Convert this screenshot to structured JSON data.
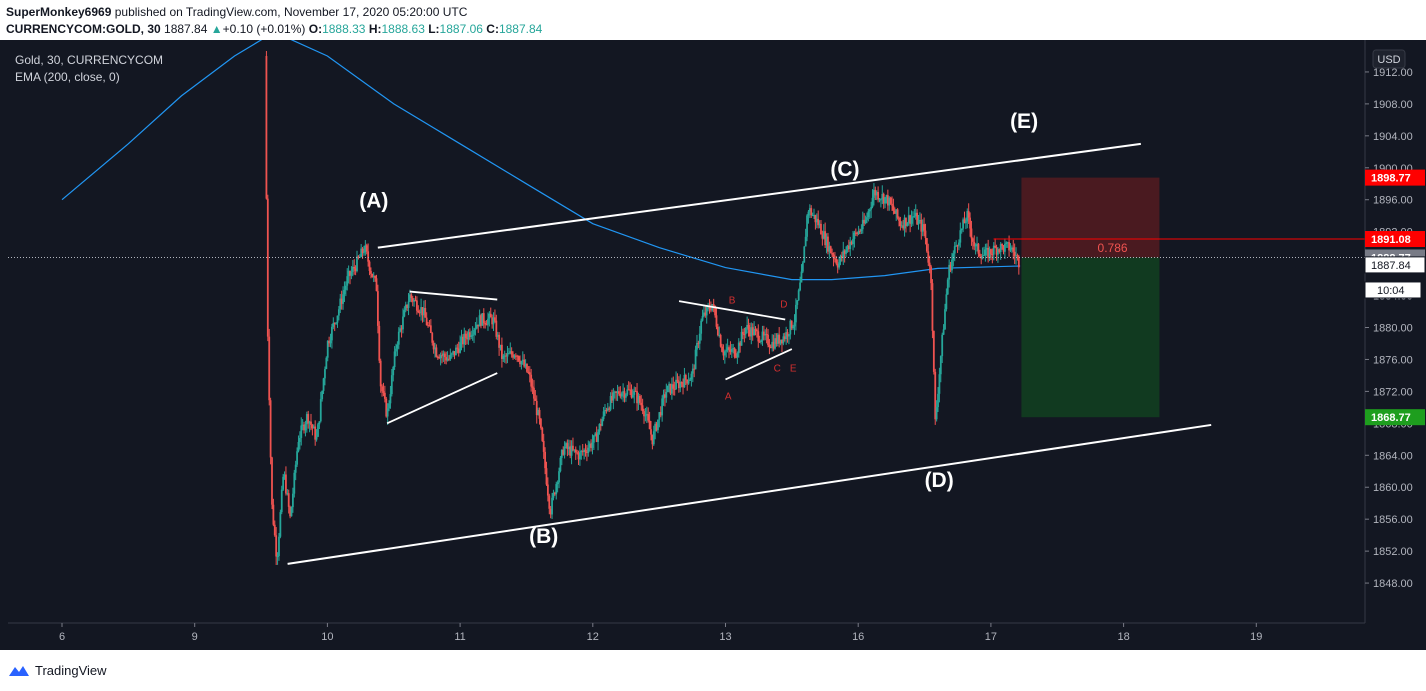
{
  "header": {
    "author": "SuperMonkey6969",
    "published": "published on TradingView.com, November 17, 2020 05:20:00 UTC",
    "symbol": "CURRENCYCOM:GOLD, 30",
    "last": "1887.84",
    "change_arrow": "▲",
    "change": "+0.10 (+0.01%)",
    "o_label": "O:",
    "o": "1888.33",
    "h_label": "H:",
    "h": "1888.63",
    "l_label": "L:",
    "l": "1887.06",
    "c_label": "C:",
    "c": "1887.84"
  },
  "legend": {
    "line1": "Gold, 30, CURRENCYCOM",
    "line2": "EMA (200, close, 0)"
  },
  "currency_button": "USD",
  "footer": {
    "brand": "TradingView"
  },
  "colors": {
    "background": "#131722",
    "up": "#26a69a",
    "down": "#ef5350",
    "ema": "#2196f3",
    "annotation": "#ffffff",
    "pattern_label": "#d32f2f",
    "stop_zone": "#4a1a20",
    "target_zone": "#113a20",
    "stop_tag": "#ff0000",
    "target_tag": "#1e9e1e"
  },
  "chart_data": {
    "type": "candlestick",
    "title": "Gold, 30, CURRENCYCOM",
    "ylim": [
      1843,
      1916
    ],
    "y_ticks": [
      1848,
      1852,
      1856,
      1860,
      1864,
      1868,
      1872,
      1876,
      1880,
      1884,
      1888,
      1892,
      1896,
      1900,
      1904,
      1908,
      1912
    ],
    "y_tick_labels": [
      "1848.00",
      "1852.00",
      "1856.00",
      "1860.00",
      "1864.00",
      "1868.00",
      "1872.00",
      "1876.00",
      "1880.00",
      "1884.00",
      "1888.00",
      "1892.00",
      "1896.00",
      "1900.00",
      "1904.00",
      "1908.00",
      "1912.00"
    ],
    "x_ticks": [
      "6",
      "9",
      "10",
      "11",
      "12",
      "13",
      "16",
      "17",
      "18",
      "19"
    ],
    "x_tick_pos": [
      0,
      1,
      2,
      3,
      4,
      5,
      6,
      7,
      8,
      9
    ],
    "grid": false,
    "price_path": [
      [
        1.53,
        1914
      ],
      [
        1.55,
        1880
      ],
      [
        1.58,
        1858
      ],
      [
        1.62,
        1851
      ],
      [
        1.67,
        1862
      ],
      [
        1.72,
        1856
      ],
      [
        1.78,
        1866
      ],
      [
        1.85,
        1869
      ],
      [
        1.92,
        1866
      ],
      [
        2.0,
        1878
      ],
      [
        2.08,
        1882
      ],
      [
        2.15,
        1886
      ],
      [
        2.22,
        1888
      ],
      [
        2.28,
        1890
      ],
      [
        2.33,
        1887
      ],
      [
        2.37,
        1885
      ],
      [
        2.4,
        1873
      ],
      [
        2.45,
        1869
      ],
      [
        2.52,
        1878
      ],
      [
        2.62,
        1884
      ],
      [
        2.72,
        1882
      ],
      [
        2.82,
        1877
      ],
      [
        2.92,
        1876
      ],
      [
        3.05,
        1879
      ],
      [
        3.15,
        1881
      ],
      [
        3.25,
        1881
      ],
      [
        3.32,
        1876
      ],
      [
        3.42,
        1877
      ],
      [
        3.52,
        1874
      ],
      [
        3.6,
        1868
      ],
      [
        3.68,
        1857
      ],
      [
        3.78,
        1865
      ],
      [
        3.9,
        1864
      ],
      [
        4.02,
        1866
      ],
      [
        4.1,
        1870
      ],
      [
        4.2,
        1872
      ],
      [
        4.3,
        1872
      ],
      [
        4.38,
        1870
      ],
      [
        4.45,
        1866
      ],
      [
        4.55,
        1872
      ],
      [
        4.65,
        1873
      ],
      [
        4.75,
        1874
      ],
      [
        4.82,
        1881
      ],
      [
        4.9,
        1883
      ],
      [
        4.98,
        1877
      ],
      [
        5.08,
        1877
      ],
      [
        5.15,
        1880
      ],
      [
        5.25,
        1879
      ],
      [
        5.35,
        1878
      ],
      [
        5.45,
        1879
      ],
      [
        5.52,
        1881
      ],
      [
        5.58,
        1887
      ],
      [
        5.62,
        1895
      ],
      [
        5.7,
        1893
      ],
      [
        5.78,
        1890
      ],
      [
        5.85,
        1888
      ],
      [
        5.95,
        1891
      ],
      [
        6.05,
        1893
      ],
      [
        6.12,
        1897
      ],
      [
        6.22,
        1896
      ],
      [
        6.32,
        1893
      ],
      [
        6.42,
        1894
      ],
      [
        6.5,
        1892
      ],
      [
        6.55,
        1886
      ],
      [
        6.58,
        1868
      ],
      [
        6.62,
        1876
      ],
      [
        6.68,
        1887
      ],
      [
        6.75,
        1891
      ],
      [
        6.82,
        1894
      ],
      [
        6.88,
        1890
      ],
      [
        6.95,
        1889
      ],
      [
        7.05,
        1890
      ],
      [
        7.15,
        1890
      ],
      [
        7.22,
        1888
      ]
    ],
    "ema_path": [
      [
        0,
        1896
      ],
      [
        0.5,
        1903
      ],
      [
        0.9,
        1909
      ],
      [
        1.3,
        1914
      ],
      [
        1.6,
        1917
      ],
      [
        2.0,
        1914
      ],
      [
        2.5,
        1908
      ],
      [
        3.0,
        1903
      ],
      [
        3.5,
        1898
      ],
      [
        4.0,
        1893
      ],
      [
        4.5,
        1890
      ],
      [
        5.0,
        1887.5
      ],
      [
        5.5,
        1886
      ],
      [
        5.8,
        1886
      ],
      [
        6.2,
        1886.5
      ],
      [
        6.6,
        1887.4
      ],
      [
        7.0,
        1887.6
      ],
      [
        7.22,
        1887.7
      ]
    ],
    "annotations": {
      "wave_labels": [
        {
          "text": "(A)",
          "x": 2.35,
          "y": 1895
        },
        {
          "text": "(B)",
          "x": 3.63,
          "y": 1853
        },
        {
          "text": "(C)",
          "x": 5.9,
          "y": 1899
        },
        {
          "text": "(D)",
          "x": 6.61,
          "y": 1860
        },
        {
          "text": "(E)",
          "x": 7.25,
          "y": 1905
        }
      ],
      "small_labels": [
        {
          "text": "A",
          "x": 5.02,
          "y": 1871
        },
        {
          "text": "B",
          "x": 5.05,
          "y": 1883
        },
        {
          "text": "C",
          "x": 5.39,
          "y": 1874.5
        },
        {
          "text": "D",
          "x": 5.44,
          "y": 1882.5
        },
        {
          "text": "E",
          "x": 5.51,
          "y": 1874.5
        }
      ],
      "upper_channel": [
        [
          2.38,
          1890
        ],
        [
          8.13,
          1903
        ]
      ],
      "lower_channel": [
        [
          1.7,
          1850.4
        ],
        [
          8.66,
          1867.8
        ]
      ],
      "triangle1": [
        [
          2.62,
          1884.5
        ],
        [
          3.28,
          1883.5
        ],
        [
          3.28,
          1874.3
        ],
        [
          2.45,
          1868
        ]
      ],
      "triangle2": [
        [
          4.65,
          1883.3
        ],
        [
          5.45,
          1881
        ],
        [
          5.5,
          1877.3
        ],
        [
          5.0,
          1873.5
        ]
      ],
      "fib_label": "0.786",
      "fib_price": 1891.08
    },
    "position": {
      "entry": 1888.77,
      "stop": 1898.77,
      "target": 1868.77,
      "x_start": 7.23,
      "x_end": 8.27
    },
    "price_tags": [
      {
        "label": "1898.77",
        "price": 1898.77,
        "kind": "stop"
      },
      {
        "label": "1891.08",
        "price": 1891.08,
        "kind": "fib"
      },
      {
        "label": "1888.77",
        "price": 1888.77,
        "kind": "entry"
      },
      {
        "label": "1887.84",
        "price": 1887.84,
        "kind": "last"
      },
      {
        "label": "10:04",
        "price": 1884.7,
        "kind": "countdown"
      },
      {
        "label": "1868.77",
        "price": 1868.77,
        "kind": "target"
      }
    ]
  }
}
